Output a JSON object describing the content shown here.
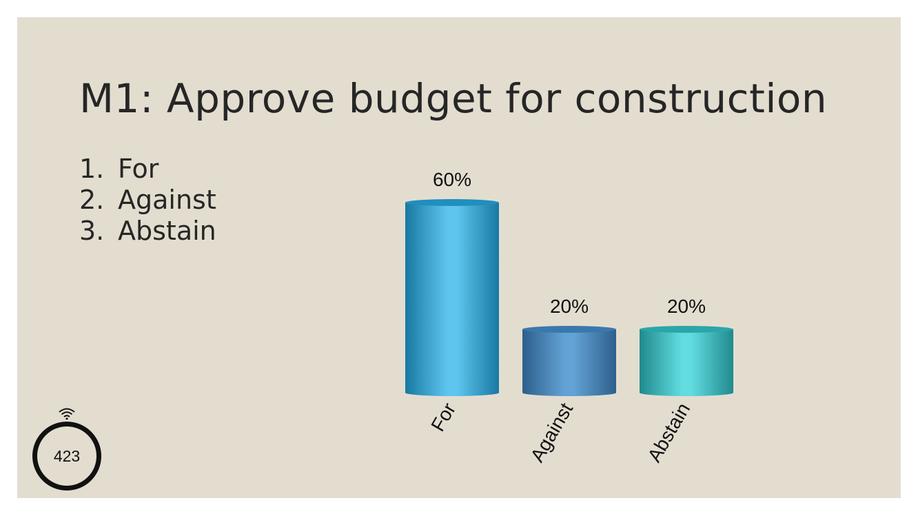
{
  "slide": {
    "title": "M1: Approve budget for construction",
    "options": [
      {
        "num": "1.",
        "label": "For"
      },
      {
        "num": "2.",
        "label": "Against"
      },
      {
        "num": "3.",
        "label": "Abstain"
      }
    ],
    "response_count": "423",
    "icons": {
      "counter": "wifi-signal-icon"
    }
  },
  "chart_data": {
    "type": "bar",
    "title": "",
    "xlabel": "",
    "ylabel": "",
    "categories": [
      "For",
      "Against",
      "Abstain"
    ],
    "values": [
      60,
      20,
      20
    ],
    "value_labels": [
      "60%",
      "20%",
      "20%"
    ],
    "ylim": [
      0,
      60
    ],
    "grid": false,
    "legend": "none",
    "colors": {
      "For": {
        "base": "#1f8fbf",
        "light": "#5ec6ee",
        "dark": "#1878a3"
      },
      "Against": {
        "base": "#3a78ac",
        "light": "#62a2d4",
        "dark": "#2d5f8c"
      },
      "Abstain": {
        "base": "#2aa6aa",
        "light": "#62dce0",
        "dark": "#1f8a8e"
      }
    }
  }
}
